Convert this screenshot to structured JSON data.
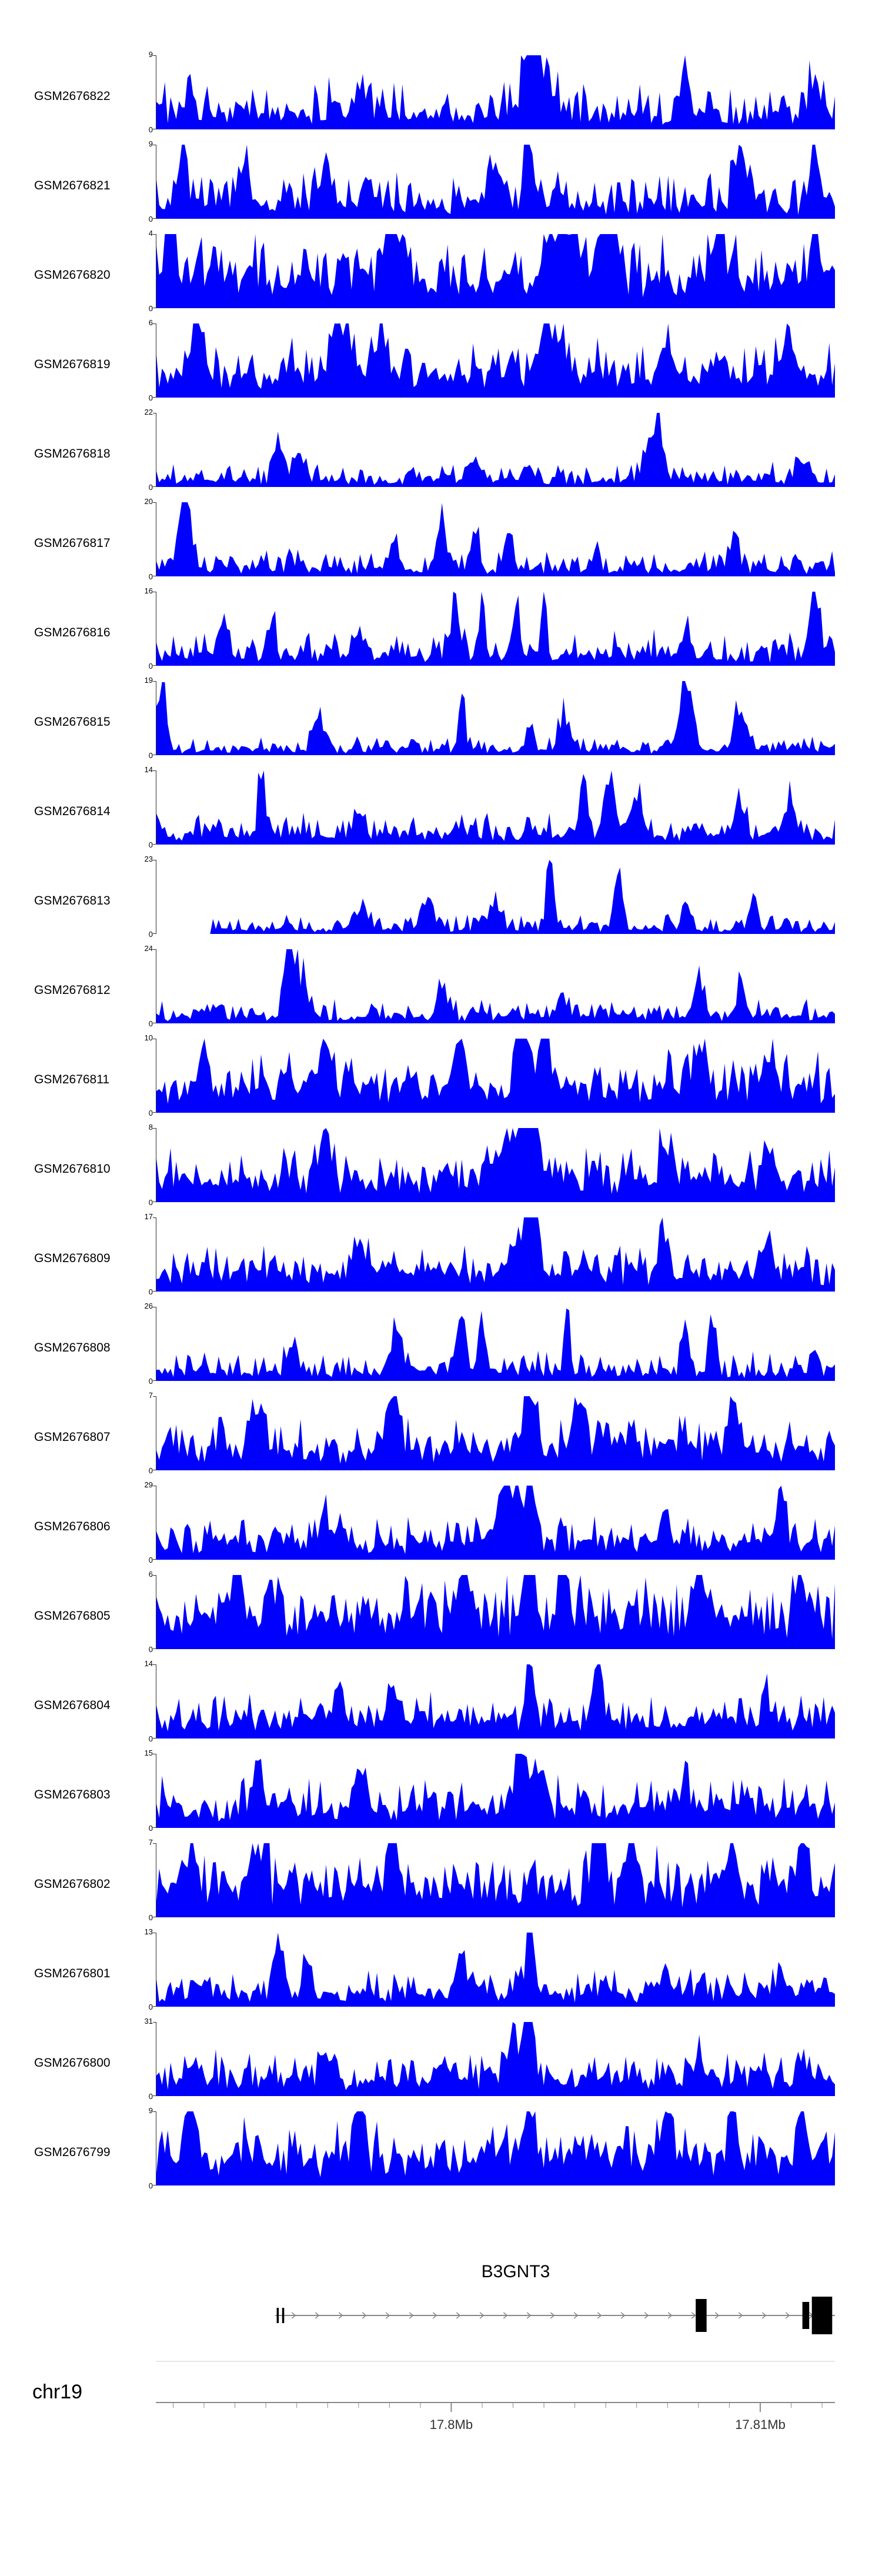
{
  "page": {
    "background": "#ffffff",
    "accent": "#0000ff"
  },
  "chart_data": {
    "type": "area",
    "title": "",
    "description": "Genome browser read-coverage tracks for 24 GEO samples over the B3GNT3 locus on chr19",
    "fill_color": "#0000ff",
    "y_axis": {
      "zero_label": "0"
    },
    "series": [
      {
        "name": "GSM2676822",
        "ymax": 9,
        "seed": 101,
        "base": 0.12,
        "noise": 0.55,
        "start": 0,
        "peaks": [
          [
            0.05,
            0.5,
            0.008
          ],
          [
            0.3,
            0.5,
            0.01
          ],
          [
            0.55,
            0.95,
            0.012
          ],
          [
            0.57,
            0.7,
            0.02
          ],
          [
            0.78,
            0.65,
            0.01
          ],
          [
            0.97,
            0.55,
            0.01
          ]
        ]
      },
      {
        "name": "GSM2676821",
        "ymax": 9,
        "seed": 202,
        "base": 0.12,
        "noise": 0.5,
        "start": 0,
        "peaks": [
          [
            0.04,
            0.85,
            0.008
          ],
          [
            0.13,
            0.7,
            0.01
          ],
          [
            0.25,
            0.6,
            0.01
          ],
          [
            0.5,
            0.6,
            0.015
          ],
          [
            0.55,
            0.95,
            0.01
          ],
          [
            0.86,
            0.8,
            0.012
          ],
          [
            0.97,
            0.85,
            0.01
          ]
        ]
      },
      {
        "name": "GSM2676820",
        "ymax": 4,
        "seed": 303,
        "base": 0.3,
        "noise": 0.6,
        "start": 0,
        "peaks": [
          [
            0.02,
            0.95,
            0.01
          ],
          [
            0.35,
            0.8,
            0.02
          ],
          [
            0.6,
            0.9,
            0.025
          ],
          [
            0.66,
            0.85,
            0.015
          ],
          [
            0.83,
            0.8,
            0.012
          ],
          [
            0.97,
            0.7,
            0.01
          ]
        ]
      },
      {
        "name": "GSM2676819",
        "ymax": 6,
        "seed": 404,
        "base": 0.22,
        "noise": 0.5,
        "start": 0,
        "peaks": [
          [
            0.06,
            0.8,
            0.01
          ],
          [
            0.27,
            0.75,
            0.015
          ],
          [
            0.33,
            0.7,
            0.012
          ],
          [
            0.58,
            0.8,
            0.02
          ],
          [
            0.75,
            0.6,
            0.01
          ],
          [
            0.93,
            0.65,
            0.012
          ]
        ]
      },
      {
        "name": "GSM2676818",
        "ymax": 22,
        "seed": 505,
        "base": 0.06,
        "noise": 0.25,
        "start": 0,
        "peaks": [
          [
            0.18,
            0.45,
            0.008
          ],
          [
            0.21,
            0.35,
            0.01
          ],
          [
            0.47,
            0.3,
            0.012
          ],
          [
            0.55,
            0.25,
            0.008
          ],
          [
            0.73,
            0.5,
            0.015
          ],
          [
            0.74,
            1.0,
            0.006
          ],
          [
            0.95,
            0.3,
            0.01
          ]
        ]
      },
      {
        "name": "GSM2676817",
        "ymax": 20,
        "seed": 606,
        "base": 0.07,
        "noise": 0.3,
        "start": 0,
        "peaks": [
          [
            0.045,
            1.0,
            0.006
          ],
          [
            0.04,
            0.5,
            0.015
          ],
          [
            0.35,
            0.3,
            0.01
          ],
          [
            0.42,
            0.55,
            0.008
          ],
          [
            0.47,
            0.5,
            0.008
          ],
          [
            0.52,
            0.45,
            0.006
          ],
          [
            0.65,
            0.3,
            0.006
          ],
          [
            0.85,
            0.4,
            0.008
          ]
        ]
      },
      {
        "name": "GSM2676816",
        "ymax": 16,
        "seed": 707,
        "base": 0.1,
        "noise": 0.35,
        "start": 0,
        "peaks": [
          [
            0.1,
            0.5,
            0.008
          ],
          [
            0.17,
            0.45,
            0.008
          ],
          [
            0.3,
            0.3,
            0.01
          ],
          [
            0.44,
            0.85,
            0.008
          ],
          [
            0.48,
            0.7,
            0.006
          ],
          [
            0.53,
            0.65,
            0.008
          ],
          [
            0.57,
            0.6,
            0.006
          ],
          [
            0.78,
            0.5,
            0.008
          ],
          [
            0.97,
            0.85,
            0.01
          ]
        ]
      },
      {
        "name": "GSM2676815",
        "ymax": 19,
        "seed": 808,
        "base": 0.05,
        "noise": 0.2,
        "start": 0,
        "peaks": [
          [
            0.008,
            1.0,
            0.008
          ],
          [
            0.24,
            0.45,
            0.012
          ],
          [
            0.45,
            0.95,
            0.006
          ],
          [
            0.55,
            0.35,
            0.008
          ],
          [
            0.6,
            0.5,
            0.01
          ],
          [
            0.78,
            0.85,
            0.015
          ],
          [
            0.86,
            0.5,
            0.012
          ]
        ]
      },
      {
        "name": "GSM2676814",
        "ymax": 14,
        "seed": 909,
        "base": 0.09,
        "noise": 0.3,
        "start": 0,
        "peaks": [
          [
            0.155,
            0.9,
            0.007
          ],
          [
            0.3,
            0.4,
            0.01
          ],
          [
            0.63,
            0.8,
            0.008
          ],
          [
            0.67,
            0.85,
            0.01
          ],
          [
            0.71,
            0.6,
            0.008
          ],
          [
            0.86,
            0.5,
            0.01
          ],
          [
            0.93,
            0.45,
            0.008
          ]
        ]
      },
      {
        "name": "GSM2676813",
        "ymax": 23,
        "seed": 111,
        "base": 0.05,
        "noise": 0.2,
        "start": 0.08,
        "peaks": [
          [
            0.3,
            0.3,
            0.012
          ],
          [
            0.4,
            0.45,
            0.01
          ],
          [
            0.5,
            0.4,
            0.01
          ],
          [
            0.58,
            0.85,
            0.007
          ],
          [
            0.68,
            0.9,
            0.007
          ],
          [
            0.78,
            0.5,
            0.008
          ],
          [
            0.88,
            0.55,
            0.008
          ]
        ]
      },
      {
        "name": "GSM2676812",
        "ymax": 24,
        "seed": 222,
        "base": 0.07,
        "noise": 0.25,
        "start": 0,
        "peaks": [
          [
            0.195,
            1.0,
            0.008
          ],
          [
            0.21,
            0.6,
            0.015
          ],
          [
            0.42,
            0.3,
            0.01
          ],
          [
            0.6,
            0.2,
            0.01
          ],
          [
            0.8,
            0.5,
            0.01
          ],
          [
            0.86,
            0.4,
            0.008
          ]
        ]
      },
      {
        "name": "GSM2676811",
        "ymax": 10,
        "seed": 333,
        "base": 0.25,
        "noise": 0.5,
        "start": 0,
        "peaks": [
          [
            0.07,
            0.5,
            0.01
          ],
          [
            0.25,
            0.6,
            0.012
          ],
          [
            0.45,
            0.6,
            0.01
          ],
          [
            0.54,
            0.95,
            0.012
          ],
          [
            0.57,
            0.85,
            0.01
          ],
          [
            0.8,
            0.6,
            0.012
          ],
          [
            0.9,
            0.55,
            0.01
          ]
        ]
      },
      {
        "name": "GSM2676810",
        "ymax": 8,
        "seed": 444,
        "base": 0.22,
        "noise": 0.45,
        "start": 0,
        "peaks": [
          [
            0.25,
            0.5,
            0.012
          ],
          [
            0.53,
            0.7,
            0.03
          ],
          [
            0.55,
            1.0,
            0.015
          ],
          [
            0.75,
            0.5,
            0.012
          ],
          [
            0.9,
            0.5,
            0.01
          ]
        ]
      },
      {
        "name": "GSM2676809",
        "ymax": 17,
        "seed": 555,
        "base": 0.18,
        "noise": 0.4,
        "start": 0,
        "peaks": [
          [
            0.3,
            0.4,
            0.012
          ],
          [
            0.54,
            0.6,
            0.02
          ],
          [
            0.555,
            1.0,
            0.008
          ],
          [
            0.75,
            0.45,
            0.01
          ],
          [
            0.9,
            0.4,
            0.01
          ]
        ]
      },
      {
        "name": "GSM2676808",
        "ymax": 26,
        "seed": 666,
        "base": 0.08,
        "noise": 0.3,
        "start": 0,
        "peaks": [
          [
            0.2,
            0.25,
            0.01
          ],
          [
            0.35,
            0.4,
            0.012
          ],
          [
            0.45,
            0.6,
            0.01
          ],
          [
            0.48,
            0.55,
            0.008
          ],
          [
            0.605,
            1.0,
            0.005
          ],
          [
            0.78,
            0.9,
            0.007
          ],
          [
            0.82,
            0.85,
            0.007
          ],
          [
            0.97,
            0.3,
            0.008
          ]
        ]
      },
      {
        "name": "GSM2676807",
        "ymax": 7,
        "seed": 777,
        "base": 0.22,
        "noise": 0.45,
        "start": 0,
        "peaks": [
          [
            0.15,
            0.6,
            0.012
          ],
          [
            0.35,
            0.6,
            0.012
          ],
          [
            0.55,
            0.95,
            0.012
          ],
          [
            0.62,
            0.7,
            0.01
          ],
          [
            0.85,
            0.5,
            0.01
          ]
        ]
      },
      {
        "name": "GSM2676806",
        "ymax": 29,
        "seed": 888,
        "base": 0.18,
        "noise": 0.4,
        "start": 0,
        "peaks": [
          [
            0.25,
            0.4,
            0.012
          ],
          [
            0.52,
            0.6,
            0.02
          ],
          [
            0.55,
            1.0,
            0.01
          ],
          [
            0.75,
            0.4,
            0.01
          ],
          [
            0.92,
            0.45,
            0.01
          ]
        ]
      },
      {
        "name": "GSM2676805",
        "ymax": 6,
        "seed": 999,
        "base": 0.32,
        "noise": 0.55,
        "start": 0,
        "peaks": [
          [
            0.12,
            0.8,
            0.012
          ],
          [
            0.17,
            0.75,
            0.01
          ],
          [
            0.45,
            0.7,
            0.012
          ],
          [
            0.55,
            0.95,
            0.012
          ],
          [
            0.6,
            0.85,
            0.01
          ],
          [
            0.8,
            0.6,
            0.012
          ],
          [
            0.95,
            0.6,
            0.01
          ]
        ]
      },
      {
        "name": "GSM2676804",
        "ymax": 14,
        "seed": 121,
        "base": 0.18,
        "noise": 0.4,
        "start": 0,
        "peaks": [
          [
            0.27,
            0.45,
            0.01
          ],
          [
            0.35,
            0.5,
            0.01
          ],
          [
            0.55,
            0.95,
            0.008
          ],
          [
            0.65,
            0.7,
            0.01
          ],
          [
            0.9,
            0.4,
            0.01
          ]
        ]
      },
      {
        "name": "GSM2676803",
        "ymax": 15,
        "seed": 232,
        "base": 0.2,
        "noise": 0.45,
        "start": 0,
        "peaks": [
          [
            0.15,
            0.5,
            0.01
          ],
          [
            0.3,
            0.45,
            0.012
          ],
          [
            0.535,
            1.0,
            0.008
          ],
          [
            0.56,
            0.7,
            0.015
          ],
          [
            0.78,
            0.45,
            0.01
          ]
        ]
      },
      {
        "name": "GSM2676802",
        "ymax": 7,
        "seed": 343,
        "base": 0.3,
        "noise": 0.55,
        "start": 0,
        "peaks": [
          [
            0.05,
            0.6,
            0.01
          ],
          [
            0.15,
            0.8,
            0.012
          ],
          [
            0.35,
            0.7,
            0.012
          ],
          [
            0.65,
            0.9,
            0.012
          ],
          [
            0.7,
            0.8,
            0.01
          ],
          [
            0.85,
            0.85,
            0.012
          ],
          [
            0.95,
            0.7,
            0.01
          ]
        ]
      },
      {
        "name": "GSM2676801",
        "ymax": 13,
        "seed": 454,
        "base": 0.13,
        "noise": 0.35,
        "start": 0,
        "peaks": [
          [
            0.18,
            0.65,
            0.01
          ],
          [
            0.22,
            0.5,
            0.008
          ],
          [
            0.45,
            0.4,
            0.01
          ],
          [
            0.55,
            0.95,
            0.008
          ],
          [
            0.75,
            0.4,
            0.01
          ],
          [
            0.92,
            0.35,
            0.01
          ]
        ]
      },
      {
        "name": "GSM2676800",
        "ymax": 31,
        "seed": 565,
        "base": 0.17,
        "noise": 0.38,
        "start": 0,
        "peaks": [
          [
            0.25,
            0.35,
            0.012
          ],
          [
            0.53,
            0.5,
            0.02
          ],
          [
            0.55,
            1.0,
            0.007
          ],
          [
            0.8,
            0.35,
            0.01
          ],
          [
            0.95,
            0.4,
            0.008
          ]
        ]
      },
      {
        "name": "GSM2676799",
        "ymax": 9,
        "seed": 676,
        "base": 0.28,
        "noise": 0.5,
        "start": 0,
        "peaks": [
          [
            0.05,
            0.85,
            0.012
          ],
          [
            0.3,
            0.6,
            0.012
          ],
          [
            0.55,
            0.7,
            0.012
          ],
          [
            0.75,
            0.8,
            0.012
          ],
          [
            0.85,
            0.7,
            0.01
          ],
          [
            0.95,
            0.65,
            0.01
          ]
        ]
      }
    ],
    "gene": {
      "name": "B3GNT3",
      "line_start": 0.176,
      "line_end": 1.0,
      "line_color": "#888888",
      "arrow_color": "#888888",
      "exon_color": "#000000",
      "exons": [
        {
          "x": 0.178,
          "w": 0.003,
          "h": 26
        },
        {
          "x": 0.186,
          "w": 0.003,
          "h": 26
        },
        {
          "x": 0.795,
          "w": 0.016,
          "h": 56
        },
        {
          "x": 0.952,
          "w": 0.01,
          "h": 46
        },
        {
          "x": 0.966,
          "w": 0.03,
          "h": 64
        }
      ]
    },
    "axis": {
      "chromosome": "chr19",
      "line_color": "#888888",
      "faint_line_color": "#cccccc",
      "ticks": [
        {
          "pos": 0.435,
          "label": "17.8Mb"
        },
        {
          "pos": 0.89,
          "label": "17.81Mb"
        }
      ],
      "minor_tick_step": 0.0455
    }
  }
}
